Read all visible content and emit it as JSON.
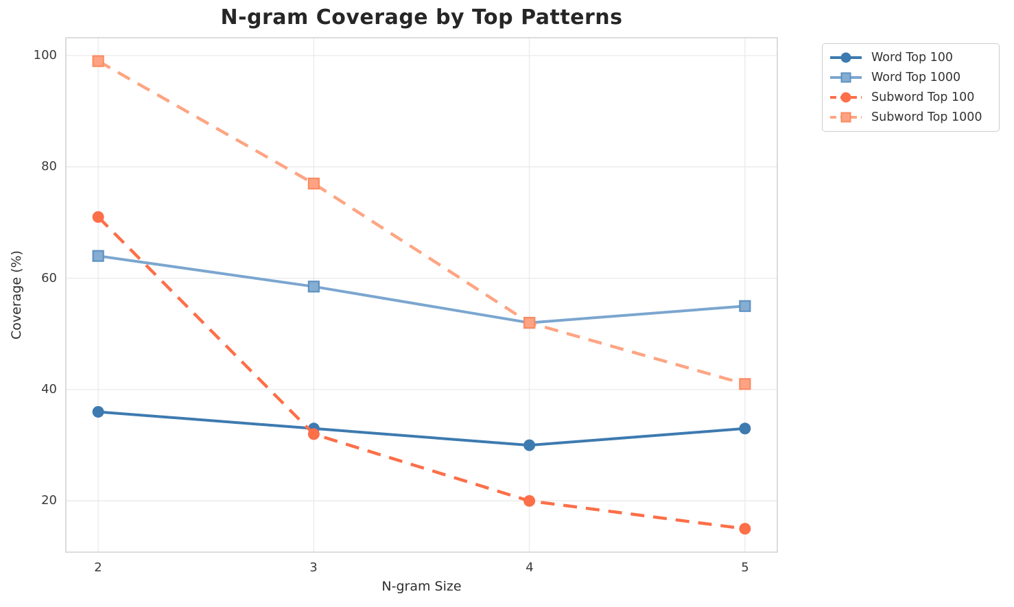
{
  "chart_data": {
    "type": "line",
    "title": "N-gram Coverage by Top Patterns",
    "xlabel": "N-gram Size",
    "ylabel": "Coverage (%)",
    "x": [
      2,
      3,
      4,
      5
    ],
    "xticks": [
      "2",
      "3",
      "4",
      "5"
    ],
    "yticks": [
      "100",
      "80",
      "60",
      "40",
      "20"
    ],
    "ytick_values": [
      100,
      80,
      60,
      40,
      20
    ],
    "xlim": [
      1.85,
      5.15
    ],
    "ylim": [
      10.8,
      103.2
    ],
    "grid": true,
    "legend_position": "outside-top-right",
    "series": [
      {
        "name": "Word Top 100",
        "values": [
          36,
          33,
          30,
          33
        ],
        "color": "#3d7ab0",
        "fill": "#3d7ab0",
        "edge": "#3d7ab0",
        "dash": "solid",
        "marker": "circle"
      },
      {
        "name": "Word Top 1000",
        "values": [
          64,
          58.5,
          52,
          55
        ],
        "color": "#7ba6cf",
        "fill": "#86add2",
        "edge": "#5e92c2",
        "dash": "solid",
        "marker": "square"
      },
      {
        "name": "Subword Top 100",
        "values": [
          71,
          32,
          20,
          15
        ],
        "color": "#fc6f48",
        "fill": "#fc6f48",
        "edge": "#fc6f48",
        "dash": "dashed",
        "marker": "circle"
      },
      {
        "name": "Subword Top 1000",
        "values": [
          99,
          77,
          52,
          41
        ],
        "color": "#fda583",
        "fill": "#fda384",
        "edge": "#fb8a61",
        "dash": "dashed",
        "marker": "square"
      }
    ]
  },
  "style_colors": {
    "grid": "#e9e9e9",
    "spine": "#d4d4d4",
    "title_text": "#262626",
    "tick_text": "#3a3a3a",
    "legend_border": "#cccccc"
  }
}
